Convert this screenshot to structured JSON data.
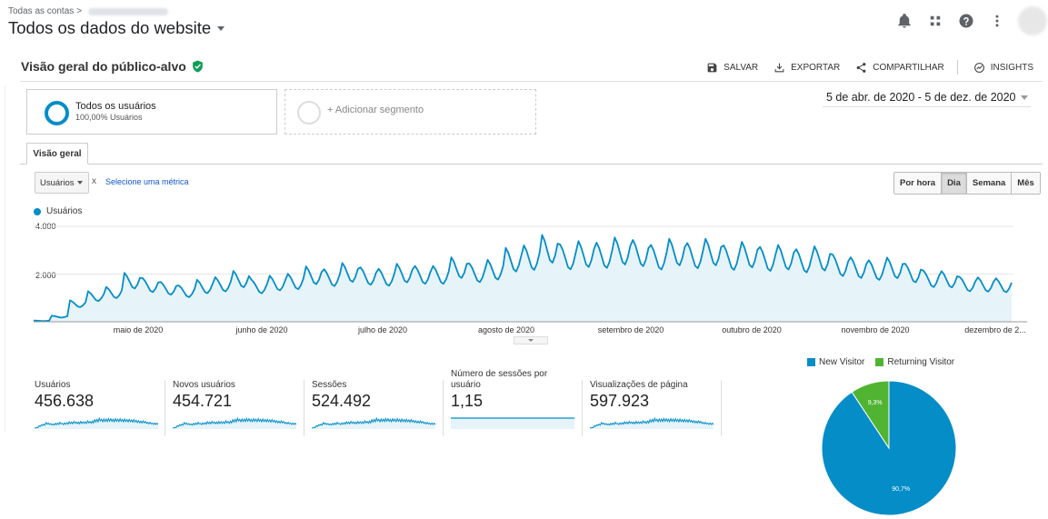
{
  "header": {
    "crumb_root": "Todas as contas",
    "crumb_sep": ">",
    "view_title": "Todos os dados do website",
    "icons": [
      "bell-icon",
      "apps-grid-icon",
      "help-icon",
      "more-vert-icon",
      "account-avatar"
    ]
  },
  "report": {
    "title": "Visão geral do público-alvo",
    "verified_icon": "check-shield-icon",
    "actions": [
      {
        "label": "SALVAR",
        "icon": "save-icon"
      },
      {
        "label": "EXPORTAR",
        "icon": "export-icon"
      },
      {
        "label": "COMPARTILHAR",
        "icon": "share-icon"
      },
      {
        "label": "INSIGHTS",
        "icon": "insights-icon"
      }
    ]
  },
  "segments": {
    "active_label": "Todos os usuários",
    "active_sub": "100,00% Usuários",
    "add_label": "+ Adicionar segmento"
  },
  "date_range": "5 de abr. de 2020 - 5 de dez. de 2020",
  "tabs": [
    {
      "label": "Visão geral",
      "active": true
    }
  ],
  "metric": {
    "selected": "Usuários",
    "remove_symbol": "x",
    "select_link": "Selecione uma métrica"
  },
  "granularity": [
    {
      "label": "Por hora",
      "active": false
    },
    {
      "label": "Dia",
      "active": true
    },
    {
      "label": "Semana",
      "active": false
    },
    {
      "label": "Mês",
      "active": false
    }
  ],
  "colors": {
    "series": "#058dc7",
    "fill": "#e6f4fa",
    "returning": "#50b432"
  },
  "chart_data": {
    "type": "area",
    "series": [
      {
        "name": "Usuários"
      }
    ],
    "y_ticks": [
      "4.000",
      "2.000"
    ],
    "ylim": [
      0,
      4000
    ],
    "x_tick_labels": [
      "maio de 2020",
      "junho de 2020",
      "julho de 2020",
      "agosto de 2020",
      "setembro de 2020",
      "outubro de 2020",
      "novembro de 2020",
      "dezembro de 2..."
    ],
    "weekly_peaks": [
      50,
      260,
      900,
      1280,
      1460,
      2050,
      1830,
      1670,
      1520,
      1760,
      1870,
      2130,
      1760,
      1930,
      2010,
      2320,
      2200,
      2460,
      2280,
      2220,
      2430,
      2340,
      2340,
      2700,
      2440,
      2600,
      3100,
      3200,
      3640,
      3230,
      3380,
      3320,
      3530,
      3430,
      3220,
      3480,
      3300,
      3480,
      3200,
      3350,
      3140,
      3220,
      3040,
      3160,
      2820,
      2700,
      2580,
      2690,
      2430,
      2140,
      2120,
      1880,
      1860,
      1820
    ]
  },
  "scorecards": [
    {
      "label": "Usuários",
      "value": "456.638"
    },
    {
      "label": "Novos usuários",
      "value": "454.721"
    },
    {
      "label": "Sessões",
      "value": "524.492"
    },
    {
      "label": "Número de sessões por usuário",
      "value": "1,15"
    },
    {
      "label": "Visualizações de página",
      "value": "597.923"
    }
  ],
  "pie_chart": {
    "type": "pie",
    "slices": [
      {
        "name": "New Visitor",
        "value": 90.7,
        "label": "90,7%",
        "color": "#058dc7"
      },
      {
        "name": "Returning Visitor",
        "value": 9.3,
        "label": "9,3%",
        "color": "#50b432"
      }
    ]
  }
}
